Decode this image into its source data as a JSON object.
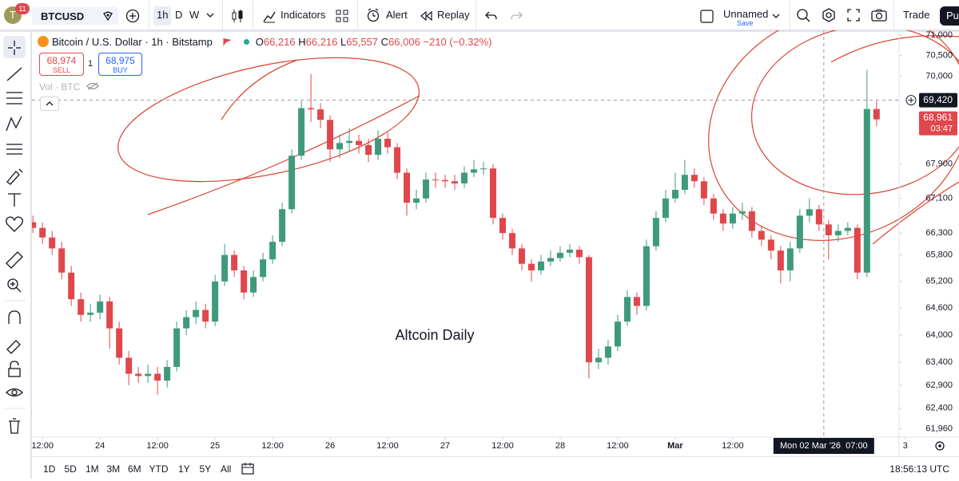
{
  "toolbar": {
    "avatar": "T",
    "badge": "11",
    "symbol": "BTCUSD",
    "intervals": [
      "1h",
      "D",
      "W"
    ],
    "indicators": "Indicators",
    "alert": "Alert",
    "replay": "Replay",
    "layout_name": "Unnamed",
    "save": "Save",
    "trade": "Trade",
    "publish": "Pu"
  },
  "chart_data": {
    "type": "candlestick",
    "title": "Bitcoin / U.S. Dollar · 1h · Bitstamp",
    "ohlc_legend": {
      "o_key": "O",
      "o": "66,216",
      "h_key": "H",
      "h": "66,216",
      "l_key": "L",
      "l": "65,557",
      "c_key": "C",
      "c": "66,006",
      "change": "−210 (−0.32%)"
    },
    "trade_panel": {
      "sell_price": "68,974",
      "sell": "SELL",
      "quantity": "1",
      "buy_price": "68,975",
      "buy": "BUY"
    },
    "volume_label": "Vol · BTC",
    "annotation": "Altcoin Daily",
    "log": true,
    "grid": false,
    "up_color": "#3f9a7c",
    "down_color": "#e0474c",
    "xlim": [
      -2.2,
      178.7
    ],
    "xticks": [
      {
        "value": 0,
        "label": "12:00"
      },
      {
        "value": 12,
        "label": "24"
      },
      {
        "value": 24,
        "label": "12:00"
      },
      {
        "value": 36,
        "label": "25"
      },
      {
        "value": 48,
        "label": "12:00"
      },
      {
        "value": 60,
        "label": "26"
      },
      {
        "value": 72,
        "label": "12:00"
      },
      {
        "value": 84,
        "label": "27"
      },
      {
        "value": 96,
        "label": "12:00"
      },
      {
        "value": 108,
        "label": "28"
      },
      {
        "value": 120,
        "label": "12:00"
      },
      {
        "value": 132,
        "label": "Mar"
      },
      {
        "value": 144,
        "label": "12:00"
      },
      {
        "value": 180,
        "label": "3"
      }
    ],
    "ylim": [
      61780,
      71120
    ],
    "yticks": [
      {
        "value": 71000,
        "label": "71,000"
      },
      {
        "value": 70500,
        "label": "70,500"
      },
      {
        "value": 70000,
        "label": "70,000"
      },
      {
        "value": 67900,
        "label": "67,900"
      },
      {
        "value": 67100,
        "label": "67,100"
      },
      {
        "value": 66300,
        "label": "66,300"
      },
      {
        "value": 65800,
        "label": "65,800"
      },
      {
        "value": 65200,
        "label": "65,200"
      },
      {
        "value": 64600,
        "label": "64,600"
      },
      {
        "value": 64000,
        "label": "64,000"
      },
      {
        "value": 63400,
        "label": "63,400"
      },
      {
        "value": 62900,
        "label": "62,900"
      },
      {
        "value": 62400,
        "label": "62,400"
      },
      {
        "value": 61960,
        "label": "61,960"
      }
    ],
    "crosshair": {
      "x": 163,
      "x_label": "Mon 02 Mar '26  07:00",
      "y": 69420,
      "y_label": "69,420"
    },
    "last_price": {
      "value": 68961,
      "label": "68,961",
      "countdown": "03:47"
    },
    "x": [
      -2,
      0,
      2,
      4,
      6,
      8,
      10,
      12,
      14,
      16,
      18,
      20,
      22,
      24,
      26,
      28,
      30,
      32,
      34,
      36,
      38,
      40,
      42,
      44,
      46,
      48,
      50,
      52,
      54,
      56,
      58,
      60,
      62,
      64,
      66,
      68,
      70,
      72,
      74,
      76,
      78,
      80,
      82,
      84,
      86,
      88,
      90,
      92,
      94,
      96,
      98,
      100,
      102,
      104,
      106,
      108,
      110,
      112,
      114,
      116,
      118,
      120,
      122,
      124,
      126,
      128,
      130,
      132,
      134,
      136,
      138,
      140,
      142,
      144,
      146,
      148,
      150,
      152,
      154,
      156,
      158,
      160,
      162,
      164,
      166,
      168,
      170,
      172,
      174
    ],
    "open": [
      66550,
      66420,
      66200,
      65950,
      65400,
      64800,
      64450,
      64500,
      64750,
      64150,
      63500,
      63150,
      63100,
      63150,
      63000,
      63300,
      64150,
      64400,
      64560,
      64300,
      65200,
      65800,
      65450,
      64950,
      65300,
      65700,
      66100,
      66850,
      68100,
      69230,
      69200,
      68950,
      68250,
      68400,
      68450,
      68350,
      68120,
      68500,
      68300,
      67700,
      67000,
      67100,
      67540,
      67530,
      67500,
      67450,
      67700,
      67780,
      67800,
      66650,
      66300,
      65950,
      65600,
      65450,
      65650,
      65730,
      65850,
      65920,
      65750,
      63400,
      63500,
      63750,
      64300,
      64850,
      64650,
      66000,
      66650,
      67100,
      67300,
      67650,
      67500,
      67100,
      66750,
      66520,
      66750,
      66800,
      66350,
      66150,
      65900,
      65450,
      65950,
      66700,
      66850,
      66500,
      66250,
      66350,
      66420,
      65400,
      69210
    ],
    "high": [
      66700,
      66550,
      66350,
      66100,
      65550,
      64950,
      64700,
      64900,
      64850,
      64300,
      63650,
      63300,
      63350,
      63300,
      63450,
      64300,
      64550,
      64750,
      64700,
      65350,
      66050,
      65900,
      65550,
      65450,
      65850,
      66250,
      67000,
      68250,
      69400,
      70050,
      69350,
      69050,
      68600,
      68750,
      68600,
      68500,
      68700,
      68650,
      68400,
      67800,
      67300,
      67700,
      67700,
      67650,
      67650,
      67850,
      68000,
      67950,
      67900,
      66750,
      66400,
      66050,
      65700,
      65800,
      65900,
      66000,
      66050,
      66000,
      65800,
      63700,
      63900,
      64450,
      65000,
      64950,
      66150,
      66800,
      67300,
      67700,
      68000,
      67800,
      67600,
      67200,
      66850,
      66900,
      67000,
      66900,
      66450,
      66250,
      66000,
      66100,
      66850,
      67100,
      66950,
      66600,
      66500,
      66550,
      66500,
      70150,
      69400
    ],
    "low": [
      66300,
      66050,
      65800,
      65250,
      64650,
      64300,
      64300,
      64350,
      63700,
      63350,
      62900,
      62950,
      62950,
      62700,
      62850,
      63200,
      64000,
      64250,
      64150,
      64200,
      65100,
      65300,
      64800,
      64850,
      65200,
      65600,
      66000,
      66750,
      68000,
      68900,
      68750,
      67950,
      68050,
      68200,
      68150,
      67950,
      68000,
      68150,
      67550,
      66700,
      66850,
      67000,
      67350,
      67350,
      67300,
      67350,
      67600,
      67650,
      66500,
      66150,
      65800,
      65450,
      65200,
      65350,
      65550,
      65650,
      65750,
      65600,
      63050,
      63250,
      63350,
      63650,
      64200,
      64450,
      64550,
      65900,
      66550,
      67000,
      67200,
      67350,
      66950,
      66600,
      66350,
      66400,
      66600,
      66200,
      66000,
      65700,
      65150,
      65200,
      65850,
      66550,
      66350,
      65700,
      66100,
      66250,
      65250,
      65300,
      68800
    ],
    "close": [
      66420,
      66200,
      65950,
      65400,
      64800,
      64450,
      64500,
      64750,
      64150,
      63500,
      63150,
      63100,
      63150,
      63000,
      63300,
      64150,
      64400,
      64560,
      64300,
      65200,
      65800,
      65450,
      64950,
      65300,
      65700,
      66100,
      66850,
      68100,
      69230,
      69200,
      68950,
      68250,
      68400,
      68450,
      68350,
      68120,
      68500,
      68300,
      67700,
      67000,
      67100,
      67540,
      67530,
      67500,
      67450,
      67700,
      67780,
      67800,
      66650,
      66300,
      65950,
      65600,
      65450,
      65650,
      65730,
      65850,
      65920,
      65750,
      63400,
      63500,
      63750,
      64300,
      64850,
      64650,
      66000,
      66650,
      67100,
      67300,
      67650,
      67500,
      67100,
      66750,
      66520,
      66750,
      66800,
      66350,
      66150,
      65900,
      65450,
      65950,
      66700,
      66850,
      66500,
      66250,
      66350,
      66420,
      65400,
      69210,
      68961
    ]
  },
  "bottom_bar": {
    "ranges": [
      "1D",
      "5D",
      "1M",
      "3M",
      "6M",
      "YTD",
      "1Y",
      "5Y",
      "All"
    ],
    "clock": "18:56:13 UTC"
  }
}
